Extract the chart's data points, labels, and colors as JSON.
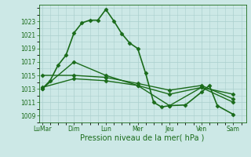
{
  "title": "Pression niveau de la mer( hPa )",
  "bg_color": "#cce8e6",
  "grid_color": "#aacfcd",
  "line_color": "#1a6b1a",
  "ylim": [
    1008,
    1025.5
  ],
  "yticks": [
    1009,
    1011,
    1013,
    1015,
    1017,
    1019,
    1021,
    1023
  ],
  "x_labels": [
    "LuMar",
    "Dim",
    "Lun",
    "Mer",
    "Jeu",
    "Ven",
    "Sam"
  ],
  "x_positions": [
    0,
    2,
    4,
    6,
    8,
    10,
    12
  ],
  "xlim": [
    -0.2,
    12.8
  ],
  "series": [
    {
      "x": [
        0,
        0.5,
        1.0,
        1.5,
        2.0,
        2.5,
        3.0,
        3.5,
        4.0,
        4.5,
        5.0,
        5.5,
        6.0,
        6.5,
        7.0,
        7.5,
        8.0,
        9.0,
        10.0,
        10.5,
        11.0,
        12.0
      ],
      "y": [
        1013.0,
        1014.2,
        1016.5,
        1018.0,
        1021.3,
        1022.8,
        1023.2,
        1023.2,
        1024.8,
        1023.1,
        1021.2,
        1019.8,
        1019.0,
        1015.3,
        1011.0,
        1010.3,
        1010.5,
        1010.6,
        1012.5,
        1013.5,
        1010.5,
        1009.2
      ],
      "marker": "D",
      "markersize": 2.5,
      "linewidth": 1.2
    },
    {
      "x": [
        0,
        2,
        4,
        6,
        8,
        10,
        12
      ],
      "y": [
        1013.0,
        1017.0,
        1015.0,
        1013.5,
        1010.5,
        1013.2,
        1012.2
      ],
      "marker": "D",
      "markersize": 2.5,
      "linewidth": 1.0
    },
    {
      "x": [
        0,
        2,
        4,
        6,
        8,
        10,
        12
      ],
      "y": [
        1015.0,
        1015.0,
        1014.7,
        1013.8,
        1012.8,
        1013.5,
        1011.5
      ],
      "marker": "D",
      "markersize": 2.5,
      "linewidth": 1.0
    },
    {
      "x": [
        0,
        2,
        4,
        6,
        8,
        10,
        12
      ],
      "y": [
        1013.2,
        1014.5,
        1014.2,
        1013.5,
        1012.2,
        1013.2,
        1011.0
      ],
      "marker": "D",
      "markersize": 2.5,
      "linewidth": 1.0
    }
  ]
}
